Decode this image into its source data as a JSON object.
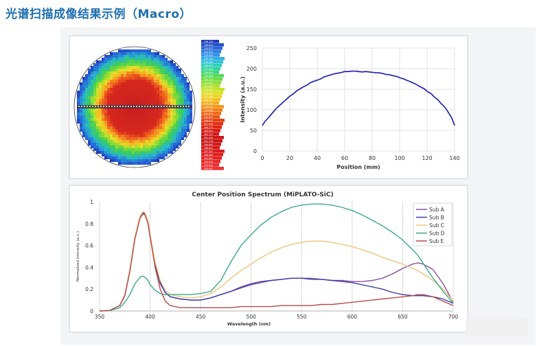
{
  "page": {
    "title": "光谱扫描成像结果示例（Macro）"
  },
  "colors": {
    "title": "#1f6fb2",
    "panel_border": "#c8d0d8",
    "panel_bg": "#f3f4f6"
  },
  "chart_data": [
    {
      "type": "heatmap",
      "description_free": true,
      "legend_values": [
        "238.125",
        "236.851",
        "235.577",
        "234.303",
        "233.029",
        "231.755",
        "230.481",
        "229.207",
        "227.933",
        "226.659",
        "225.385",
        "224.111",
        "222.837",
        "221.563",
        "220.289",
        "219.015",
        "217.741",
        "216.467",
        "215.193",
        "213.919",
        "212.645",
        "211.371",
        "210.097",
        "208.823",
        "207.549",
        "206.275",
        "205.001",
        "203.727",
        "202.453",
        "201.179",
        "199.905",
        "198.631",
        "197.357",
        "196.083",
        "194.809",
        "193.535",
        "192.261",
        "190.987"
      ],
      "legend_colors": [
        "#1e3cb4",
        "#2350c8",
        "#2a66d8",
        "#2e7ee0",
        "#3096e6",
        "#30aee6",
        "#2ec4d6",
        "#2cd0b8",
        "#30d498",
        "#3cd878",
        "#52da5a",
        "#70dc44",
        "#8ede34",
        "#aae02c",
        "#c4e228",
        "#dce026",
        "#ecd624",
        "#f2c222",
        "#f4ac20",
        "#f4961e",
        "#f2801c",
        "#f06a1a",
        "#ec5418",
        "#e84016",
        "#e43014",
        "#de2414",
        "#d81c14",
        "#d21616",
        "#cc1414",
        "#c81616",
        "#d01818",
        "#d41a1a",
        "#da1c1c",
        "#de2020",
        "#e22424",
        "#e82828",
        "#ec2c2c",
        "#f03030"
      ]
    },
    {
      "type": "line",
      "xlabel": "Position (mm)",
      "ylabel": "Intensity (a.u.)",
      "xlim": [
        0,
        140
      ],
      "ylim": [
        0,
        250
      ],
      "xticks": [
        "0",
        "20",
        "40",
        "60",
        "80",
        "100",
        "120",
        "140"
      ],
      "yticks": [
        "0",
        "50",
        "100",
        "150",
        "200",
        "250"
      ],
      "color": "#2a2eb0",
      "series": [
        {
          "x": [
            0,
            2,
            5,
            8,
            10,
            13,
            15,
            18,
            20,
            23,
            25,
            28,
            30,
            33,
            35,
            38,
            40,
            43,
            45,
            48,
            50,
            53,
            55,
            58,
            60,
            63,
            65,
            68,
            70,
            73,
            75,
            78,
            80,
            83,
            85,
            88,
            90,
            93,
            95,
            98,
            100,
            103,
            105,
            108,
            110,
            113,
            115,
            118,
            120,
            123,
            125,
            128,
            130,
            133,
            135,
            138,
            140
          ],
          "y": [
            62,
            72,
            83,
            95,
            103,
            112,
            118,
            127,
            133,
            140,
            146,
            152,
            156,
            161,
            166,
            170,
            172,
            176,
            180,
            183,
            185,
            188,
            189,
            191,
            193,
            193,
            194,
            194,
            193,
            192,
            193,
            192,
            191,
            190,
            190,
            188,
            186,
            185,
            183,
            181,
            178,
            175,
            172,
            168,
            165,
            160,
            156,
            151,
            145,
            139,
            132,
            124,
            116,
            106,
            96,
            80,
            62
          ]
        }
      ]
    },
    {
      "type": "line",
      "title": "Center Position Spectrum (MiPLATO-SiC)",
      "xlabel": "Wavelength (nm)",
      "ylabel": "Normalized Intensity (a.u.)",
      "xlim": [
        350,
        700
      ],
      "ylim": [
        0,
        1
      ],
      "xticks": [
        "350",
        "400",
        "450",
        "500",
        "550",
        "600",
        "650",
        "700"
      ],
      "yticks": [
        "0",
        "0.2",
        "0.4",
        "0.6",
        "0.8",
        "1"
      ],
      "legend_position": "top-right",
      "x": [
        350,
        360,
        370,
        375,
        380,
        385,
        390,
        393,
        395,
        398,
        400,
        405,
        410,
        415,
        420,
        430,
        440,
        450,
        460,
        470,
        480,
        490,
        500,
        510,
        520,
        530,
        540,
        550,
        560,
        570,
        580,
        590,
        600,
        610,
        620,
        630,
        640,
        650,
        660,
        665,
        670,
        680,
        690,
        700
      ],
      "series": [
        {
          "name": "Sub A",
          "color": "#8a4f9e",
          "values": [
            0.0,
            0.005,
            0.05,
            0.15,
            0.38,
            0.68,
            0.86,
            0.89,
            0.88,
            0.8,
            0.68,
            0.42,
            0.25,
            0.17,
            0.13,
            0.11,
            0.1,
            0.1,
            0.12,
            0.15,
            0.18,
            0.21,
            0.24,
            0.26,
            0.28,
            0.29,
            0.3,
            0.3,
            0.3,
            0.29,
            0.28,
            0.28,
            0.27,
            0.27,
            0.28,
            0.3,
            0.34,
            0.39,
            0.43,
            0.44,
            0.43,
            0.38,
            0.25,
            0.08
          ]
        },
        {
          "name": "Sub B",
          "color": "#3a3aa8",
          "values": [
            0.0,
            0.005,
            0.05,
            0.14,
            0.37,
            0.67,
            0.86,
            0.9,
            0.89,
            0.81,
            0.69,
            0.43,
            0.26,
            0.17,
            0.13,
            0.11,
            0.1,
            0.1,
            0.12,
            0.15,
            0.18,
            0.22,
            0.25,
            0.27,
            0.28,
            0.29,
            0.3,
            0.3,
            0.29,
            0.29,
            0.28,
            0.27,
            0.26,
            0.24,
            0.22,
            0.2,
            0.17,
            0.15,
            0.14,
            0.14,
            0.14,
            0.13,
            0.11,
            0.07
          ]
        },
        {
          "name": "Sub C",
          "color": "#f2c27a",
          "values": [
            0.0,
            0.005,
            0.05,
            0.15,
            0.38,
            0.68,
            0.87,
            0.91,
            0.9,
            0.82,
            0.7,
            0.45,
            0.28,
            0.19,
            0.15,
            0.13,
            0.12,
            0.13,
            0.16,
            0.22,
            0.3,
            0.37,
            0.43,
            0.49,
            0.54,
            0.58,
            0.61,
            0.63,
            0.64,
            0.64,
            0.63,
            0.61,
            0.59,
            0.56,
            0.53,
            0.49,
            0.46,
            0.43,
            0.39,
            0.37,
            0.34,
            0.28,
            0.2,
            0.09
          ]
        },
        {
          "name": "Sub D",
          "color": "#3aaa86",
          "values": [
            0.0,
            0.003,
            0.03,
            0.08,
            0.15,
            0.25,
            0.31,
            0.32,
            0.31,
            0.28,
            0.24,
            0.19,
            0.16,
            0.15,
            0.15,
            0.15,
            0.15,
            0.16,
            0.18,
            0.28,
            0.45,
            0.6,
            0.7,
            0.79,
            0.86,
            0.91,
            0.95,
            0.97,
            0.98,
            0.98,
            0.97,
            0.95,
            0.92,
            0.88,
            0.83,
            0.78,
            0.72,
            0.65,
            0.56,
            0.51,
            0.44,
            0.3,
            0.18,
            0.07
          ]
        },
        {
          "name": "Sub E",
          "color": "#b34a4a",
          "values": [
            0.0,
            0.005,
            0.05,
            0.14,
            0.36,
            0.66,
            0.85,
            0.89,
            0.88,
            0.8,
            0.68,
            0.4,
            0.2,
            0.09,
            0.05,
            0.03,
            0.03,
            0.03,
            0.03,
            0.03,
            0.03,
            0.04,
            0.04,
            0.04,
            0.04,
            0.05,
            0.05,
            0.05,
            0.05,
            0.06,
            0.06,
            0.07,
            0.08,
            0.09,
            0.1,
            0.11,
            0.12,
            0.13,
            0.14,
            0.15,
            0.15,
            0.13,
            0.09,
            0.05
          ]
        }
      ]
    }
  ]
}
